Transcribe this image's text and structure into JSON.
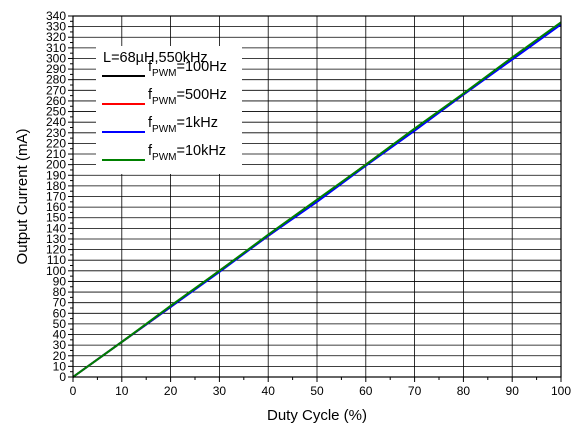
{
  "chart_data": {
    "type": "line",
    "xlabel": "Duty Cycle (%)",
    "ylabel": "Output Current (mA)",
    "xlim": [
      0,
      100
    ],
    "ylim": [
      0,
      340
    ],
    "x_ticks": [
      0,
      10,
      20,
      30,
      40,
      50,
      60,
      70,
      80,
      90,
      100
    ],
    "y_ticks": [
      0,
      10,
      20,
      30,
      40,
      50,
      60,
      70,
      80,
      90,
      100,
      110,
      120,
      130,
      140,
      150,
      160,
      170,
      180,
      190,
      200,
      210,
      220,
      230,
      240,
      250,
      260,
      270,
      280,
      290,
      300,
      310,
      320,
      330,
      340
    ],
    "grid": true,
    "legend": {
      "placement": "top-left",
      "header": "L=68µH,550kHz"
    },
    "x": [
      0,
      10,
      20,
      30,
      40,
      50,
      60,
      70,
      80,
      90,
      100
    ],
    "series": [
      {
        "name_main": "f",
        "name_sub": "PWM",
        "name_rest": "=100Hz",
        "color": "#000000",
        "values": [
          0,
          33,
          66,
          100,
          133,
          166,
          200,
          233,
          266,
          300,
          333
        ]
      },
      {
        "name_main": "f",
        "name_sub": "PWM",
        "name_rest": "=500Hz",
        "color": "#ff0000",
        "values": [
          0,
          33,
          66,
          100,
          133,
          166,
          200,
          233,
          266,
          300,
          333
        ]
      },
      {
        "name_main": "f",
        "name_sub": "PWM",
        "name_rest": "=1kHz",
        "color": "#0000ff",
        "values": [
          0,
          33,
          66,
          99,
          133,
          165,
          199,
          232,
          266,
          299,
          332
        ]
      },
      {
        "name_main": "f",
        "name_sub": "PWM",
        "name_rest": "=10kHz",
        "color": "#008000",
        "values": [
          0,
          33,
          67,
          100,
          134,
          167,
          200,
          234,
          267,
          301,
          334
        ]
      }
    ]
  }
}
